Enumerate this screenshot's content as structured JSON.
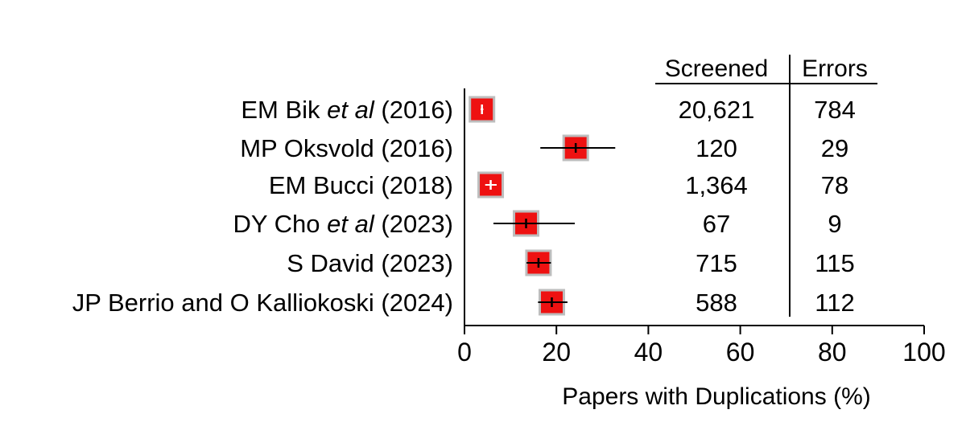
{
  "chart_data": {
    "type": "forest",
    "xlabel": "Papers with Duplications (%)",
    "xlim": [
      0,
      100
    ],
    "xticks": [
      "0",
      "20",
      "40",
      "60",
      "80",
      "100"
    ],
    "grid": false,
    "table_headers": {
      "screened": "Screened",
      "errors": "Errors"
    },
    "studies": [
      {
        "label": "EM Bik ",
        "italic": "et al",
        "year": " (2016)",
        "estimate": 3.8,
        "ci": [
          3.5,
          4.1
        ],
        "screened": "20,621",
        "errors": "784"
      },
      {
        "label": "MP Oksvold (2016)",
        "italic": "",
        "year": "",
        "estimate": 24.2,
        "ci": [
          16.5,
          32.8
        ],
        "screened": "120",
        "errors": "29"
      },
      {
        "label": "EM Bucci (2018)",
        "italic": "",
        "year": "",
        "estimate": 5.7,
        "ci": [
          4.5,
          7.0
        ],
        "screened": "1,364",
        "errors": "78"
      },
      {
        "label": "DY Cho ",
        "italic": "et al",
        "year": " (2023)",
        "estimate": 13.4,
        "ci": [
          6.3,
          24.0
        ],
        "screened": "67",
        "errors": "9"
      },
      {
        "label": "S David (2023)",
        "italic": "",
        "year": "",
        "estimate": 16.1,
        "ci": [
          13.5,
          18.8
        ],
        "screened": "715",
        "errors": "115"
      },
      {
        "label": "JP Berrio and O Kalliokoski (2024)",
        "italic": "",
        "year": "",
        "estimate": 19.0,
        "ci": [
          16.0,
          22.4
        ],
        "screened": "588",
        "errors": "112"
      }
    ],
    "marker_color": "#ee1111",
    "marker_border": "#bdbdbd"
  }
}
